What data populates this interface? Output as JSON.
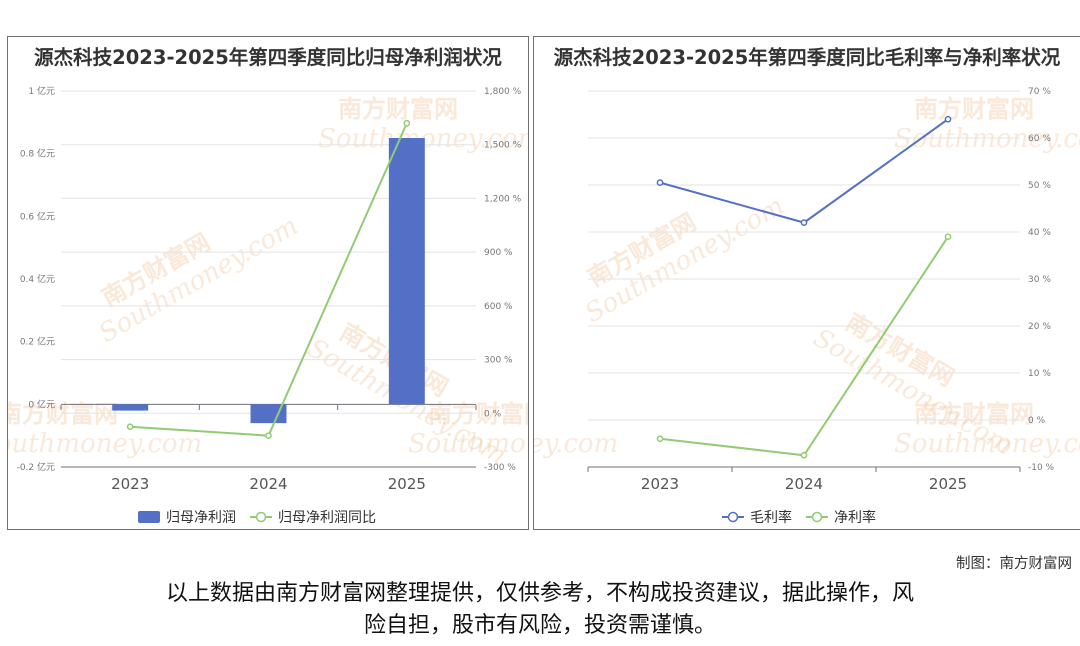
{
  "chart_data": [
    {
      "type": "bar",
      "title": "源杰科技2023-2025年第四季度同比归母净利润状况",
      "categories": [
        "2023",
        "2024",
        "2025"
      ],
      "series": [
        {
          "name": "归母净利润",
          "type": "bar",
          "axis": "left",
          "values": [
            -0.02,
            -0.06,
            0.85
          ],
          "color": "#5470c6"
        },
        {
          "name": "归母净利润同比",
          "type": "line",
          "axis": "right",
          "values": [
            -75,
            -125,
            1620
          ],
          "color": "#91cc75"
        }
      ],
      "y_left": {
        "min": -0.2,
        "max": 1.0,
        "ticks": [
          -0.2,
          0,
          0.2,
          0.4,
          0.6,
          0.8,
          1
        ],
        "tick_labels": [
          "-0.2 亿元",
          "0 亿元",
          "0.2 亿元",
          "0.4 亿元",
          "0.6 亿元",
          "0.8 亿元",
          "1 亿元"
        ]
      },
      "y_right": {
        "min": -300,
        "max": 1800,
        "ticks": [
          -300,
          0,
          300,
          600,
          900,
          1200,
          1500,
          1800
        ],
        "tick_labels": [
          "-300 %",
          "0 %",
          "300 %",
          "600 %",
          "900 %",
          "1,200 %",
          "1,500 %",
          "1,800 %"
        ]
      },
      "legend": "bottom-center",
      "grid": true
    },
    {
      "type": "line",
      "title": "源杰科技2023-2025年第四季度同比毛利率与净利率状况",
      "categories": [
        "2023",
        "2024",
        "2025"
      ],
      "series": [
        {
          "name": "毛利率",
          "axis": "right",
          "values": [
            50.5,
            42,
            64
          ],
          "color": "#5470c6"
        },
        {
          "name": "净利率",
          "axis": "right",
          "values": [
            -4,
            -7.5,
            39
          ],
          "color": "#91cc75"
        }
      ],
      "y_right": {
        "min": -10,
        "max": 70,
        "ticks": [
          -10,
          0,
          10,
          20,
          30,
          40,
          50,
          60,
          70
        ],
        "tick_labels": [
          "-10 %",
          "0 %",
          "10 %",
          "20 %",
          "30 %",
          "40 %",
          "50 %",
          "60 %",
          "70 %"
        ]
      },
      "legend": "bottom-center",
      "grid": true
    }
  ],
  "watermark": {
    "cn": "南方财富网",
    "en": "Southmoney.com"
  },
  "footer": {
    "credit": "制图：南方财富网",
    "disclaimer_line1": "以上数据由南方财富网整理提供，仅供参考，不构成投资建议，据此操作，风",
    "disclaimer_line2": "险自担，股市有风险，投资需谨慎。"
  }
}
